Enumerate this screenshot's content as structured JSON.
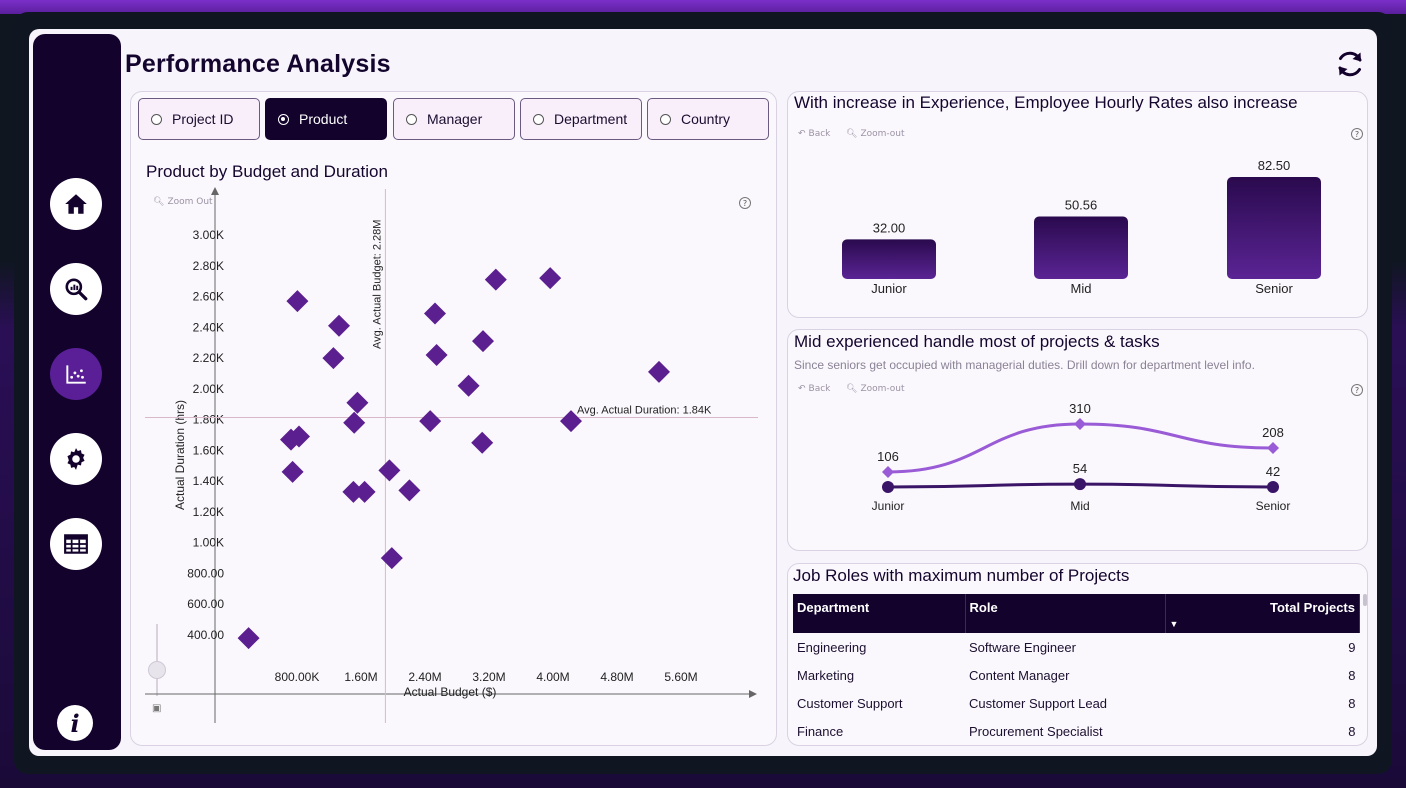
{
  "page": {
    "title": "Performance Analysis"
  },
  "colors": {
    "accent": "#5a1f96",
    "dark": "#12022c",
    "marker": "#5b1f8f"
  },
  "sidebar": {
    "items": [
      {
        "name": "home",
        "icon": "home-icon"
      },
      {
        "name": "analysis",
        "icon": "magnify-chart-icon"
      },
      {
        "name": "scatter",
        "icon": "scatter-chart-icon",
        "active": true
      },
      {
        "name": "settings",
        "icon": "gear-icon"
      },
      {
        "name": "table",
        "icon": "table-icon"
      }
    ],
    "info_label": "i"
  },
  "slicers": [
    {
      "label": "Project ID",
      "selected": false
    },
    {
      "label": "Product",
      "selected": true
    },
    {
      "label": "Manager",
      "selected": false
    },
    {
      "label": "Department",
      "selected": false
    },
    {
      "label": "Country",
      "selected": false
    }
  ],
  "scatter": {
    "title": "Product by Budget and Duration",
    "zoom_label": "Zoom Out",
    "help": "?",
    "zoom_icon_label": "▣"
  },
  "hourly": {
    "title": "With increase in Experience, Employee Hourly Rates also increase",
    "back": "Back",
    "zoom": "Zoom-out",
    "help": "?"
  },
  "projects": {
    "title": "Mid experienced handle most of projects & tasks",
    "subtitle": "Since seniors get occupied with managerial duties. Drill down for department level info.",
    "back": "Back",
    "zoom": "Zoom-out",
    "help": "?"
  },
  "jobs": {
    "title": "Job Roles with maximum number of Projects",
    "columns": [
      "Department",
      "Role",
      "Total Projects"
    ],
    "rows": [
      [
        "Engineering",
        "Software Engineer",
        "9"
      ],
      [
        "Marketing",
        "Content Manager",
        "8"
      ],
      [
        "Customer Support",
        "Customer Support Lead",
        "8"
      ],
      [
        "Finance",
        "Procurement Specialist",
        "8"
      ]
    ]
  },
  "chart_data": [
    {
      "type": "scatter",
      "title": "Product by Budget and Duration",
      "xlabel": "Actual Budget ($)",
      "ylabel": "Actual Duration (hrs)",
      "xlim": [
        0,
        6400000
      ],
      "ylim": [
        0,
        3200
      ],
      "x_ticks": [
        800000,
        1600000,
        2400000,
        3200000,
        4000000,
        4800000,
        5600000
      ],
      "x_tick_labels": [
        "800.00K",
        "1.60M",
        "2.40M",
        "3.20M",
        "4.00M",
        "4.80M",
        "5.60M"
      ],
      "y_ticks": [
        400,
        600,
        800,
        1000,
        1200,
        1400,
        1600,
        1800,
        2000,
        2200,
        2400,
        2600,
        2800,
        3000
      ],
      "y_tick_labels": [
        "400.00",
        "600.00",
        "800.00",
        "1.00K",
        "1.20K",
        "1.40K",
        "1.60K",
        "1.80K",
        "2.00K",
        "2.20K",
        "2.40K",
        "2.60K",
        "2.80K",
        "3.00K"
      ],
      "ref_lines": [
        {
          "axis": "x",
          "value": 2280000,
          "label": "Avg. Actual Budget: 2.28M"
        },
        {
          "axis": "y",
          "value": 1840,
          "label": "Avg. Actual Duration: 1.84K"
        }
      ],
      "points": [
        {
          "x": 370000,
          "y": 380
        },
        {
          "x": 900000,
          "y": 1670
        },
        {
          "x": 1000000,
          "y": 1690
        },
        {
          "x": 920000,
          "y": 1460
        },
        {
          "x": 980000,
          "y": 2570
        },
        {
          "x": 1500000,
          "y": 2410
        },
        {
          "x": 1430000,
          "y": 2200
        },
        {
          "x": 1730000,
          "y": 1910
        },
        {
          "x": 1690000,
          "y": 1780
        },
        {
          "x": 1680000,
          "y": 1330
        },
        {
          "x": 1820000,
          "y": 1330
        },
        {
          "x": 2130000,
          "y": 1470
        },
        {
          "x": 2380000,
          "y": 1340
        },
        {
          "x": 2160000,
          "y": 900
        },
        {
          "x": 2640000,
          "y": 1790
        },
        {
          "x": 2700000,
          "y": 2490
        },
        {
          "x": 2720000,
          "y": 2220
        },
        {
          "x": 3120000,
          "y": 2020
        },
        {
          "x": 3300000,
          "y": 2310
        },
        {
          "x": 3290000,
          "y": 1650
        },
        {
          "x": 3460000,
          "y": 2710
        },
        {
          "x": 4140000,
          "y": 2720
        },
        {
          "x": 4400000,
          "y": 1790
        },
        {
          "x": 5500000,
          "y": 2110
        }
      ]
    },
    {
      "type": "bar",
      "title": "With increase in Experience, Employee Hourly Rates also increase",
      "categories": [
        "Junior",
        "Mid",
        "Senior"
      ],
      "values": [
        32.0,
        50.56,
        82.5
      ],
      "value_labels": [
        "32.00",
        "50.56",
        "82.50"
      ],
      "ylim": [
        0,
        82.5
      ]
    },
    {
      "type": "line",
      "title": "Mid experienced handle most of projects & tasks",
      "categories": [
        "Junior",
        "Mid",
        "Senior"
      ],
      "series": [
        {
          "values": [
            106,
            310,
            208
          ],
          "labels": [
            "106",
            "310",
            "208"
          ],
          "color": "#9a5bd6",
          "marker": "diamond"
        },
        {
          "values": [
            42,
            54,
            42
          ],
          "labels": [
            "",
            "54",
            "42"
          ],
          "color": "#3a1466",
          "marker": "circle"
        }
      ]
    }
  ]
}
